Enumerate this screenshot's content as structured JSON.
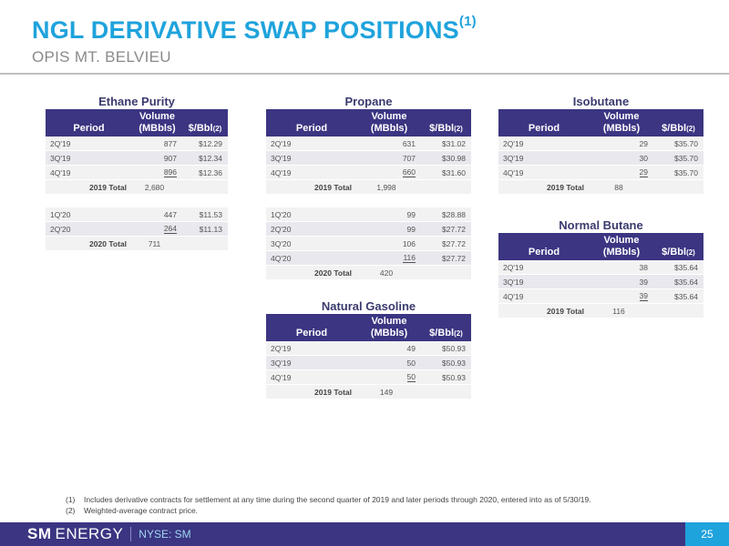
{
  "header": {
    "title": "NGL DERIVATIVE SWAP POSITIONS",
    "title_sup": "(1)",
    "subtitle": "OPIS MT. BELVIEU"
  },
  "columns": {
    "period": "Period",
    "volume_line1": "Volume",
    "volume_line2": "(MBbls)",
    "price": "$/Bbl",
    "price_sup": "(2)"
  },
  "ethane": {
    "title": "Ethane Purity",
    "group1": [
      {
        "period": "2Q'19",
        "volume": "877",
        "price": "$12.29"
      },
      {
        "period": "3Q'19",
        "volume": "907",
        "price": "$12.34"
      },
      {
        "period": "4Q'19",
        "volume": "896",
        "price": "$12.36"
      }
    ],
    "total1": {
      "label": "2019 Total",
      "volume": "2,680"
    },
    "group2": [
      {
        "period": "1Q'20",
        "volume": "447",
        "price": "$11.53"
      },
      {
        "period": "2Q'20",
        "volume": "264",
        "price": "$11.13"
      }
    ],
    "total2": {
      "label": "2020 Total",
      "volume": "711"
    }
  },
  "propane": {
    "title": "Propane",
    "group1": [
      {
        "period": "2Q'19",
        "volume": "631",
        "price": "$31.02"
      },
      {
        "period": "3Q'19",
        "volume": "707",
        "price": "$30.98"
      },
      {
        "period": "4Q'19",
        "volume": "660",
        "price": "$31.60"
      }
    ],
    "total1": {
      "label": "2019 Total",
      "volume": "1,998"
    },
    "group2": [
      {
        "period": "1Q'20",
        "volume": "99",
        "price": "$28.88"
      },
      {
        "period": "2Q'20",
        "volume": "99",
        "price": "$27.72"
      },
      {
        "period": "3Q'20",
        "volume": "106",
        "price": "$27.72"
      },
      {
        "period": "4Q'20",
        "volume": "116",
        "price": "$27.72"
      }
    ],
    "total2": {
      "label": "2020 Total",
      "volume": "420"
    }
  },
  "isobutane": {
    "title": "Isobutane",
    "group1": [
      {
        "period": "2Q'19",
        "volume": "29",
        "price": "$35.70"
      },
      {
        "period": "3Q'19",
        "volume": "30",
        "price": "$35.70"
      },
      {
        "period": "4Q'19",
        "volume": "29",
        "price": "$35.70"
      }
    ],
    "total1": {
      "label": "2019 Total",
      "volume": "88"
    }
  },
  "normal_butane": {
    "title": "Normal Butane",
    "group1": [
      {
        "period": "2Q'19",
        "volume": "38",
        "price": "$35.64"
      },
      {
        "period": "3Q'19",
        "volume": "39",
        "price": "$35.64"
      },
      {
        "period": "4Q'19",
        "volume": "39",
        "price": "$35.64"
      }
    ],
    "total1": {
      "label": "2019 Total",
      "volume": "116"
    }
  },
  "natural_gasoline": {
    "title": "Natural Gasoline",
    "group1": [
      {
        "period": "2Q'19",
        "volume": "49",
        "price": "$50.93"
      },
      {
        "period": "3Q'19",
        "volume": "50",
        "price": "$50.93"
      },
      {
        "period": "4Q'19",
        "volume": "50",
        "price": "$50.93"
      }
    ],
    "total1": {
      "label": "2019 Total",
      "volume": "149"
    }
  },
  "footnotes": [
    {
      "marker": "(1)",
      "text": "Includes derivative contracts for settlement at any time during the second quarter of 2019 and later periods through 2020, entered into as of 5/30/19."
    },
    {
      "marker": "(2)",
      "text": "Weighted-average contract price."
    }
  ],
  "footer": {
    "logo_bold": "SM",
    "logo_rest": "ENERGY",
    "ticker": "NYSE: SM",
    "page_number": "25"
  },
  "colors": {
    "title_blue": "#1fa3dc",
    "header_purple": "#3b3582",
    "footer_purple": "#3b3582",
    "page_tab_blue": "#1fa3dc"
  }
}
